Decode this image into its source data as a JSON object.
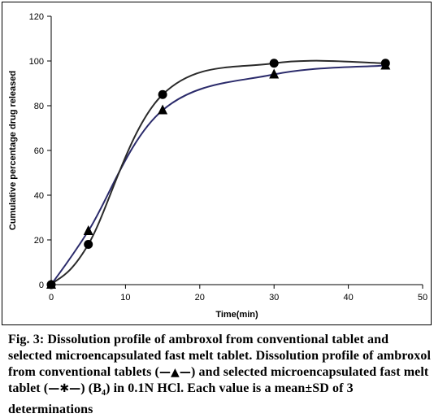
{
  "chart_data": {
    "type": "line",
    "xlabel": "Time(min)",
    "ylabel": "Cumulative percentage drug released",
    "xlim": [
      0,
      50
    ],
    "ylim": [
      0,
      120
    ],
    "x_ticks": [
      0,
      10,
      20,
      30,
      40,
      50
    ],
    "y_ticks": [
      0,
      20,
      40,
      60,
      80,
      100,
      120
    ],
    "grid": false,
    "legend": "none",
    "series": [
      {
        "marker": "triangle",
        "color": "#2b2b6b",
        "x": [
          0,
          5,
          15,
          30,
          45
        ],
        "y": [
          0,
          24,
          78,
          94,
          98
        ]
      },
      {
        "marker": "circle",
        "color": "#2a2a2a",
        "x": [
          0,
          5,
          15,
          30,
          45
        ],
        "y": [
          0,
          18,
          85,
          99,
          99
        ]
      }
    ]
  },
  "caption": {
    "fig_label": "Fig. 3:",
    "part1": " Dissolution profile of ambroxol from conventional tablet and selected microencapsulated fast melt tablet. Dissolution profile of ambroxol from conventional tablets (",
    "sym_triangle": "—▲—",
    "part2": ") and selected microencapsulated fast melt tablet (",
    "sym_star": "—✱—",
    "part3": ") (B",
    "sub": "4",
    "part4": ") in 0.1N HCl. Each value is a mean±SD of 3 determinations"
  }
}
